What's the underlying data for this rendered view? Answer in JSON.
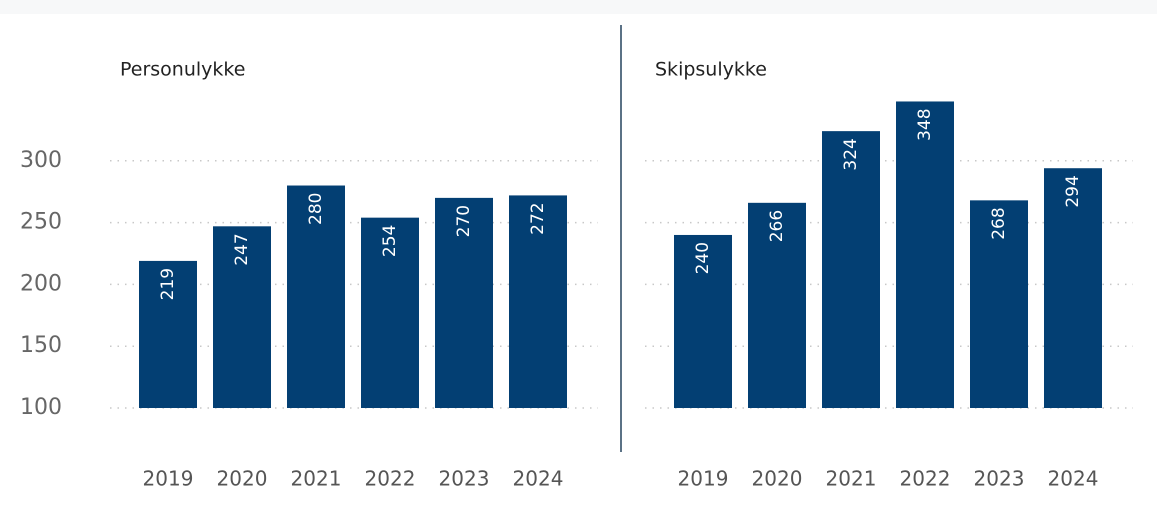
{
  "chart_data": [
    {
      "type": "bar",
      "title": "Personulykke",
      "categories": [
        "2019",
        "2020",
        "2021",
        "2022",
        "2023",
        "2024"
      ],
      "values": [
        219,
        247,
        280,
        254,
        270,
        272
      ],
      "color": "#033f73",
      "ylim": [
        100,
        350
      ],
      "yticks": [
        100,
        150,
        200,
        250,
        300
      ],
      "grid": true,
      "ytick_labels": true
    },
    {
      "type": "bar",
      "title": "Skipsulykke",
      "categories": [
        "2019",
        "2020",
        "2021",
        "2022",
        "2023",
        "2024"
      ],
      "values": [
        240,
        266,
        324,
        348,
        268,
        294
      ],
      "color": "#033f73",
      "ylim": [
        100,
        350
      ],
      "yticks": [
        100,
        150,
        200,
        250,
        300
      ],
      "grid": true,
      "ytick_labels": false
    }
  ]
}
